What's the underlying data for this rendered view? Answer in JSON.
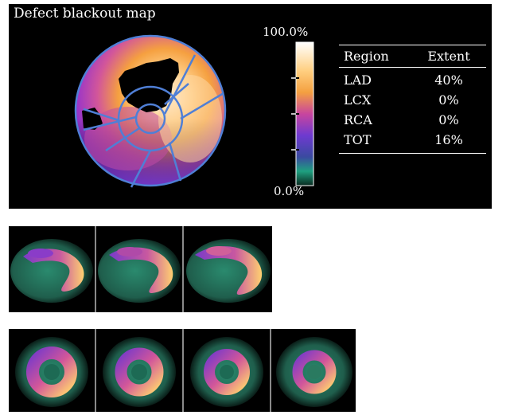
{
  "blackout_panel": {
    "title": "Defect blackout map",
    "scale": {
      "max_label": "100.0%",
      "min_label": "0.0%"
    },
    "table": {
      "headers": [
        "Region",
        "Extent"
      ],
      "rows": [
        {
          "region": "LAD",
          "extent": "40%"
        },
        {
          "region": "LCX",
          "extent": "0%"
        },
        {
          "region": "RCA",
          "extent": "0%"
        },
        {
          "region": "TOT",
          "extent": "16%"
        }
      ]
    }
  },
  "long_axis_panel": {
    "slice_count": 3
  },
  "short_axis_panel": {
    "slice_count": 4
  },
  "colors": {
    "background": "#000000",
    "segment_lines": "#4f7fd6",
    "divider": "#8a8a8a"
  }
}
